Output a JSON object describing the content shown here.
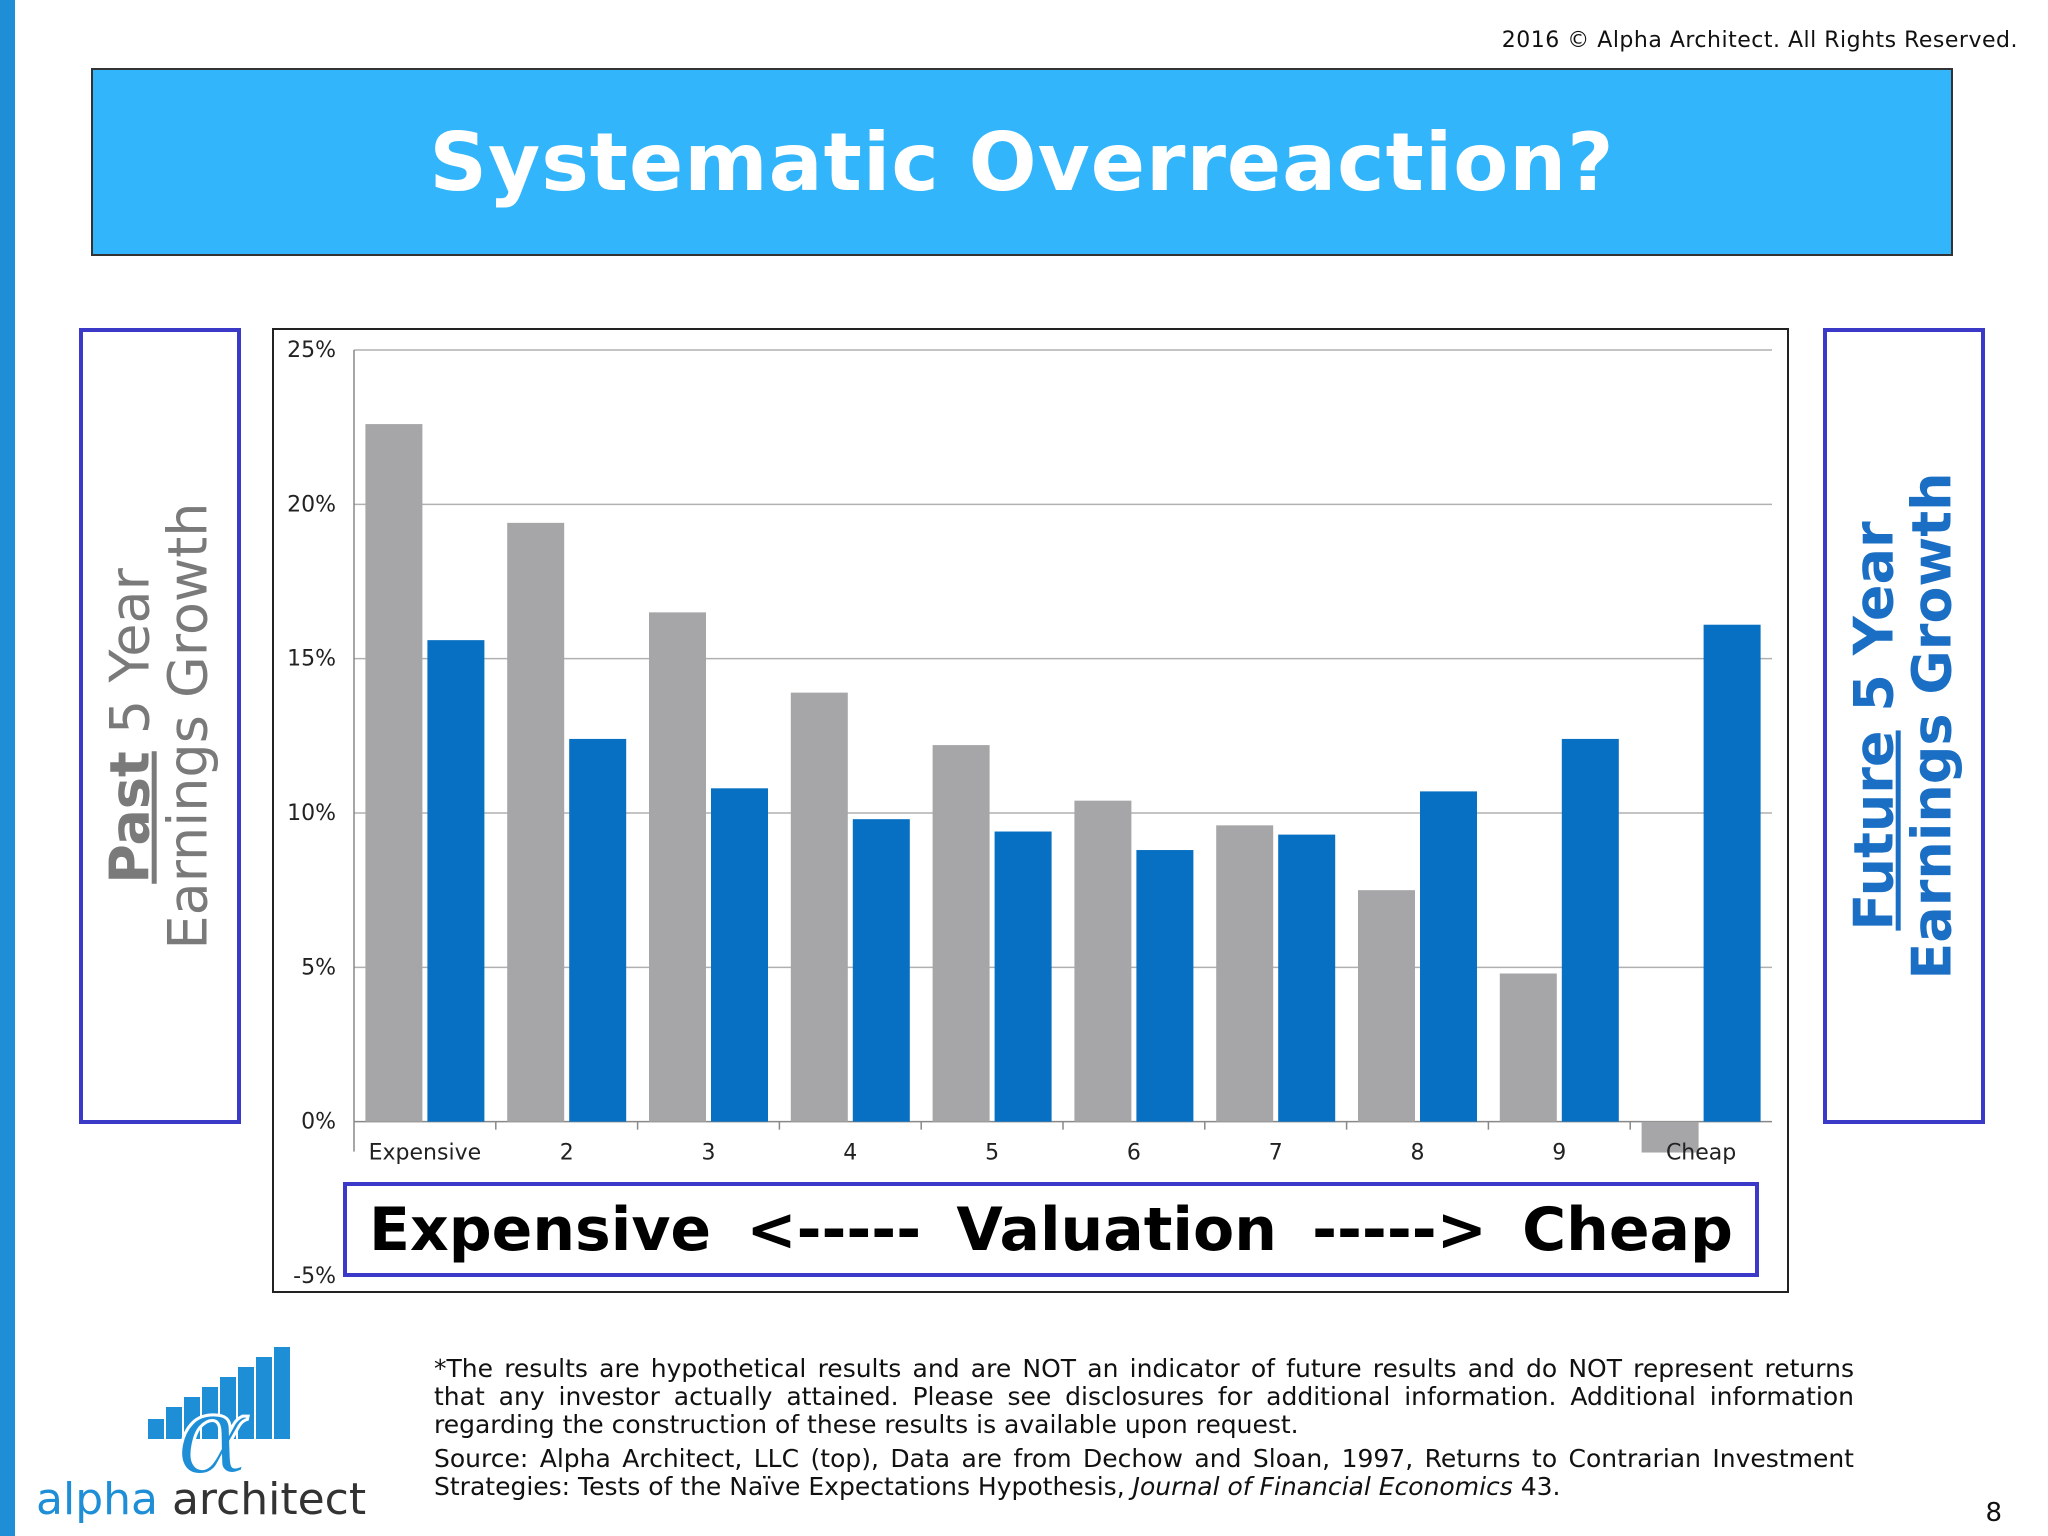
{
  "copyright": "2016 © Alpha Architect. All Rights Reserved.",
  "title": "Systematic Overreaction?",
  "left_label": {
    "emph": "Past",
    "line1_rest": " 5 Year",
    "line2": "Earnings Growth"
  },
  "right_label": {
    "emph": "Future",
    "line1_rest": " 5 Year",
    "line2": "Earnings Growth"
  },
  "valuation_label": {
    "left": "Expensive",
    "arrow_left": "<-----",
    "center": "Valuation",
    "arrow_right": "----->",
    "right": "Cheap"
  },
  "chart_data": {
    "type": "bar",
    "categories": [
      "Expensive",
      "2",
      "3",
      "4",
      "5",
      "6",
      "7",
      "8",
      "9",
      "Cheap"
    ],
    "series": [
      {
        "values": [
          22.6,
          19.4,
          16.5,
          13.9,
          12.2,
          10.4,
          9.6,
          7.5,
          4.8,
          -1.0
        ],
        "color": "#a6a6a8"
      },
      {
        "values": [
          15.6,
          12.4,
          10.8,
          9.8,
          9.4,
          8.8,
          9.3,
          10.7,
          12.4,
          16.1
        ],
        "color": "#0870c2"
      }
    ],
    "yticks": [
      "25%",
      "20%",
      "15%",
      "10%",
      "5%",
      "0%",
      "-5%"
    ],
    "ylim": [
      -5,
      25
    ],
    "grid": true,
    "legend": "none"
  },
  "disclaimer": "*The results are hypothetical results and are NOT an indicator of future results and do NOT represent returns that any investor actually attained. Please see disclosures for additional information. Additional information regarding the construction of these results is available upon request.",
  "source": {
    "prefix": "Source: Alpha Architect, LLC (top),  Data are from Dechow and Sloan, 1997, Returns to Contrarian Investment Strategies: Tests of the Naïve Expectations Hypothesis, ",
    "journal": "Journal of Financial Economics",
    "suffix": " 43."
  },
  "logo": {
    "part1": "alpha",
    "part2": " architect",
    "icon": "alpha-symbol-bar-icon"
  },
  "page_number": "8"
}
